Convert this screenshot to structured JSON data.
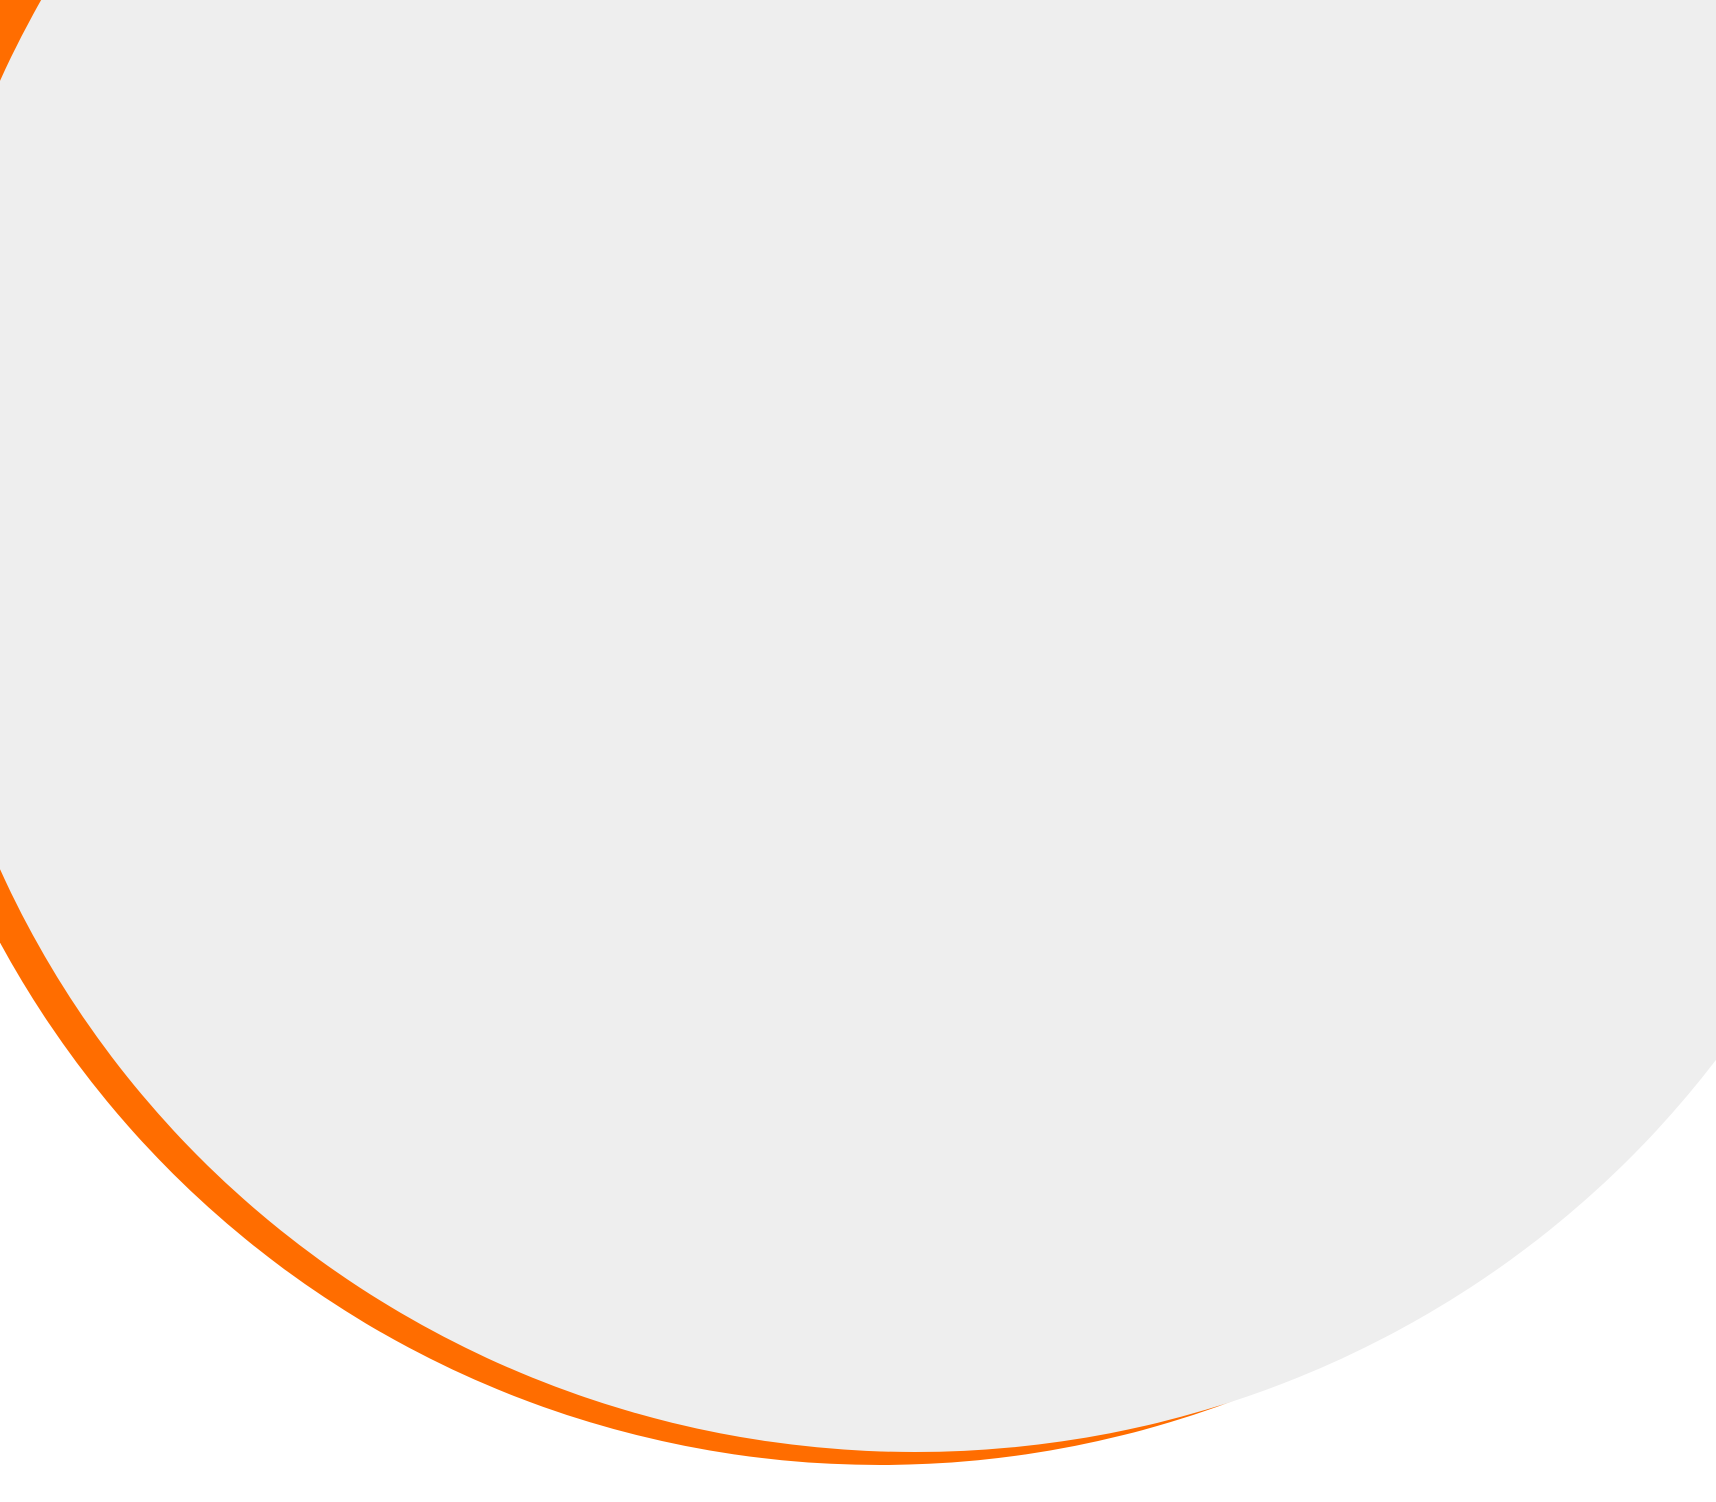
{
  "colors": {
    "background": "#ffffff",
    "accent": "#ff6d00",
    "surface": "#eeeeee"
  },
  "shapes": {
    "accent_shape": "orange-crescent-arc",
    "surface_shape": "light-grey-disc"
  }
}
